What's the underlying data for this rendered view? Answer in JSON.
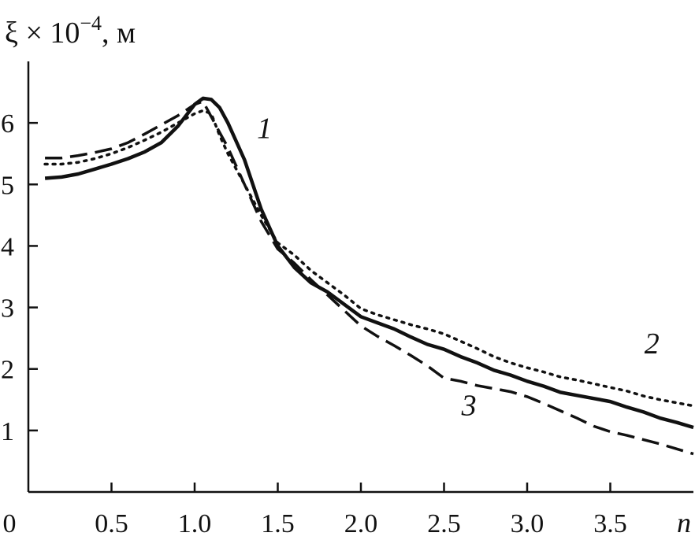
{
  "chart_data": {
    "type": "line",
    "ylabel": "ξ × 10",
    "ylabel_exp": "−4",
    "ylabel_unit": ", м",
    "xlabel": "n",
    "xlim": [
      0,
      4.0
    ],
    "ylim": [
      0,
      7
    ],
    "x_ticks": [
      0.5,
      1.0,
      1.5,
      2.0,
      2.5,
      3.0,
      3.5
    ],
    "x_tick_labels": [
      "0.5",
      "1.0",
      "1.5",
      "2.0",
      "2.5",
      "3.0",
      "3.5"
    ],
    "y_ticks": [
      1,
      2,
      3,
      4,
      5,
      6
    ],
    "y_tick_labels": [
      "1",
      "2",
      "3",
      "4",
      "5",
      "6"
    ],
    "origin_label": "0",
    "grid": false,
    "series": [
      {
        "name": "1",
        "style": "solid",
        "x": [
          0.1,
          0.2,
          0.3,
          0.4,
          0.5,
          0.6,
          0.7,
          0.8,
          0.9,
          1.0,
          1.05,
          1.1,
          1.15,
          1.2,
          1.3,
          1.4,
          1.5,
          1.6,
          1.7,
          1.8,
          1.9,
          2.0,
          2.1,
          2.2,
          2.3,
          2.4,
          2.5,
          2.6,
          2.7,
          2.8,
          2.9,
          3.0,
          3.1,
          3.2,
          3.3,
          3.4,
          3.5,
          3.6,
          3.7,
          3.8,
          3.9,
          4.0
        ],
        "y": [
          5.1,
          5.12,
          5.17,
          5.25,
          5.33,
          5.42,
          5.53,
          5.68,
          5.95,
          6.3,
          6.4,
          6.38,
          6.25,
          6.0,
          5.4,
          4.6,
          4.0,
          3.65,
          3.4,
          3.25,
          3.05,
          2.85,
          2.75,
          2.65,
          2.52,
          2.4,
          2.32,
          2.2,
          2.1,
          1.98,
          1.9,
          1.8,
          1.72,
          1.62,
          1.57,
          1.52,
          1.47,
          1.38,
          1.3,
          1.2,
          1.13,
          1.05
        ]
      },
      {
        "name": "2",
        "style": "dotted",
        "x": [
          0.1,
          0.2,
          0.3,
          0.4,
          0.5,
          0.6,
          0.7,
          0.8,
          0.9,
          1.0,
          1.05,
          1.1,
          1.15,
          1.2,
          1.3,
          1.4,
          1.5,
          1.6,
          1.7,
          1.8,
          1.9,
          2.0,
          2.1,
          2.2,
          2.3,
          2.4,
          2.5,
          2.6,
          2.7,
          2.8,
          2.9,
          3.0,
          3.1,
          3.2,
          3.3,
          3.4,
          3.5,
          3.6,
          3.7,
          3.8,
          3.9,
          4.0
        ],
        "y": [
          5.33,
          5.33,
          5.36,
          5.42,
          5.5,
          5.6,
          5.72,
          5.85,
          6.0,
          6.15,
          6.2,
          6.15,
          5.8,
          5.5,
          5.0,
          4.5,
          4.05,
          3.85,
          3.6,
          3.4,
          3.2,
          2.98,
          2.88,
          2.8,
          2.72,
          2.65,
          2.57,
          2.45,
          2.33,
          2.2,
          2.1,
          2.02,
          1.95,
          1.87,
          1.82,
          1.76,
          1.7,
          1.64,
          1.56,
          1.5,
          1.45,
          1.4
        ]
      },
      {
        "name": "3",
        "style": "dashed",
        "x": [
          0.1,
          0.2,
          0.3,
          0.4,
          0.5,
          0.6,
          0.7,
          0.8,
          0.9,
          1.0,
          1.05,
          1.1,
          1.15,
          1.2,
          1.3,
          1.4,
          1.5,
          1.6,
          1.7,
          1.8,
          1.9,
          2.0,
          2.1,
          2.2,
          2.3,
          2.4,
          2.5,
          2.6,
          2.7,
          2.8,
          2.9,
          3.0,
          3.1,
          3.2,
          3.3,
          3.4,
          3.5,
          3.6,
          3.7,
          3.8,
          3.9,
          4.0
        ],
        "y": [
          5.43,
          5.43,
          5.47,
          5.52,
          5.58,
          5.68,
          5.82,
          5.97,
          6.12,
          6.3,
          6.35,
          6.1,
          5.85,
          5.6,
          5.0,
          4.4,
          3.95,
          3.72,
          3.45,
          3.2,
          2.95,
          2.7,
          2.53,
          2.38,
          2.22,
          2.05,
          1.85,
          1.8,
          1.73,
          1.68,
          1.63,
          1.55,
          1.44,
          1.32,
          1.2,
          1.07,
          0.98,
          0.92,
          0.85,
          0.78,
          0.7,
          0.62
        ]
      }
    ],
    "series_labels": [
      "1",
      "2",
      "3"
    ]
  }
}
